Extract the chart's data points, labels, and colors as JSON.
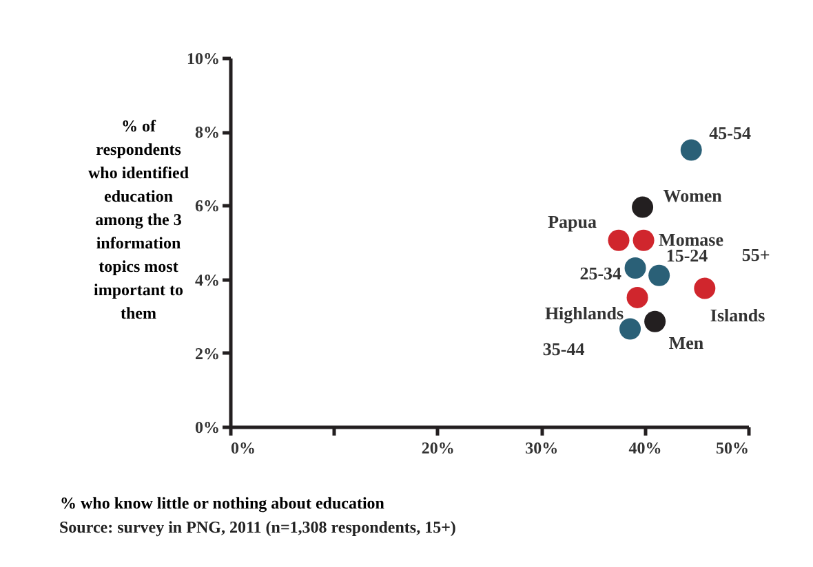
{
  "chart_data": {
    "type": "scatter",
    "xlabel": "% who know little or nothing about education",
    "ylabel": "% of respondents who identified education among the 3 information topics most important to them",
    "series": [
      {
        "color": "#2a6077",
        "x": [
          44.5,
          39.1,
          41.4,
          38.6
        ],
        "values": [
          7.5,
          4.3,
          4.1,
          2.65
        ]
      },
      {
        "color": "#d0262d",
        "x": [
          37.5,
          39.9,
          45.8,
          39.3
        ],
        "values": [
          5.05,
          5.05,
          3.75,
          3.5
        ]
      },
      {
        "color": "#231f20",
        "x": [
          39.8,
          41.0
        ],
        "values": [
          5.95,
          2.85
        ]
      }
    ],
    "annotations": [
      {
        "text": "45-54",
        "x": 44.5,
        "y": 7.5
      },
      {
        "text": "Women",
        "x": 39.8,
        "y": 5.95
      },
      {
        "text": "Papua",
        "x": 37.5,
        "y": 5.05
      },
      {
        "text": "Momase",
        "x": 39.9,
        "y": 5.05
      },
      {
        "text": "25-34",
        "x": 39.1,
        "y": 4.3
      },
      {
        "text": "15-24",
        "x": 41.4,
        "y": 4.1
      },
      {
        "text": "55+",
        "x": 45.8,
        "y": 3.75
      },
      {
        "text": "Islands",
        "x": 45.8,
        "y": 3.75
      },
      {
        "text": "Highlands",
        "x": 39.3,
        "y": 3.5
      },
      {
        "text": "Men",
        "x": 41.0,
        "y": 2.85
      },
      {
        "text": "35-44",
        "x": 38.6,
        "y": 2.65
      },
      "Source: survey in PNG, 2011 (n=1,308 respondents, 15+)"
    ],
    "xlim": [
      0,
      50
    ],
    "ylim": [
      0,
      10
    ],
    "xticks": [
      {
        "value": 0,
        "label": "0%"
      },
      {
        "value": 10,
        "label": null
      },
      {
        "value": 20,
        "label": "20%"
      },
      {
        "value": 30,
        "label": "30%"
      },
      {
        "value": 40,
        "label": "40%"
      },
      {
        "value": 50,
        "label": "50%"
      }
    ],
    "yticks": [
      {
        "value": 0,
        "label": "0%"
      },
      {
        "value": 2,
        "label": "2%"
      },
      {
        "value": 4,
        "label": "4%"
      },
      {
        "value": 6,
        "label": "6%"
      },
      {
        "value": 8,
        "label": "8%"
      },
      {
        "value": 10,
        "label": "10%"
      }
    ],
    "grid": false,
    "marker": "circle"
  }
}
